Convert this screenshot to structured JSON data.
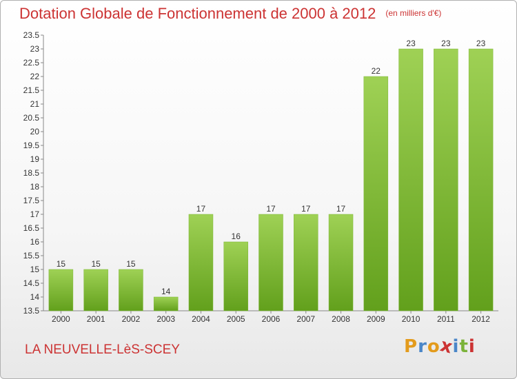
{
  "header": {
    "title": "Dotation Globale de Fonctionnement de 2000 à 2012",
    "unit": "(en milliers d'€)"
  },
  "footer": {
    "commune": "LA NEUVELLE-LèS-SCEY",
    "brand": {
      "letters": [
        "P",
        "r",
        "o",
        "x",
        "i",
        "t",
        "i"
      ],
      "colors": [
        "#e39b1c",
        "#4a86c8",
        "#e39b1c",
        "#cc3333",
        "#4a86c8",
        "#7bb33a",
        "#cc3333"
      ]
    }
  },
  "chart_data": {
    "type": "bar",
    "title": "",
    "xlabel": "",
    "ylabel": "",
    "categories": [
      "2000",
      "2001",
      "2002",
      "2003",
      "2004",
      "2005",
      "2006",
      "2007",
      "2008",
      "2009",
      "2010",
      "2011",
      "2012"
    ],
    "values": [
      15,
      15,
      15,
      14,
      17,
      16,
      17,
      17,
      17,
      22,
      23,
      23,
      23
    ],
    "data_labels": [
      "15",
      "15",
      "15",
      "14",
      "17",
      "16",
      "17",
      "17",
      "17",
      "22",
      "23",
      "23",
      "23"
    ],
    "ylim": [
      13.5,
      23.5
    ],
    "yticks": [
      "13.5",
      "14",
      "14.5",
      "15",
      "15.5",
      "16",
      "16.5",
      "17",
      "17.5",
      "18",
      "18.5",
      "19",
      "19.5",
      "20",
      "20.5",
      "21",
      "21.5",
      "22",
      "22.5",
      "23",
      "23.5"
    ],
    "grid": false,
    "legend": "none",
    "colors": {
      "bar_top": "#9fd155",
      "bar_bottom": "#62a01c",
      "label": "#333333"
    }
  }
}
